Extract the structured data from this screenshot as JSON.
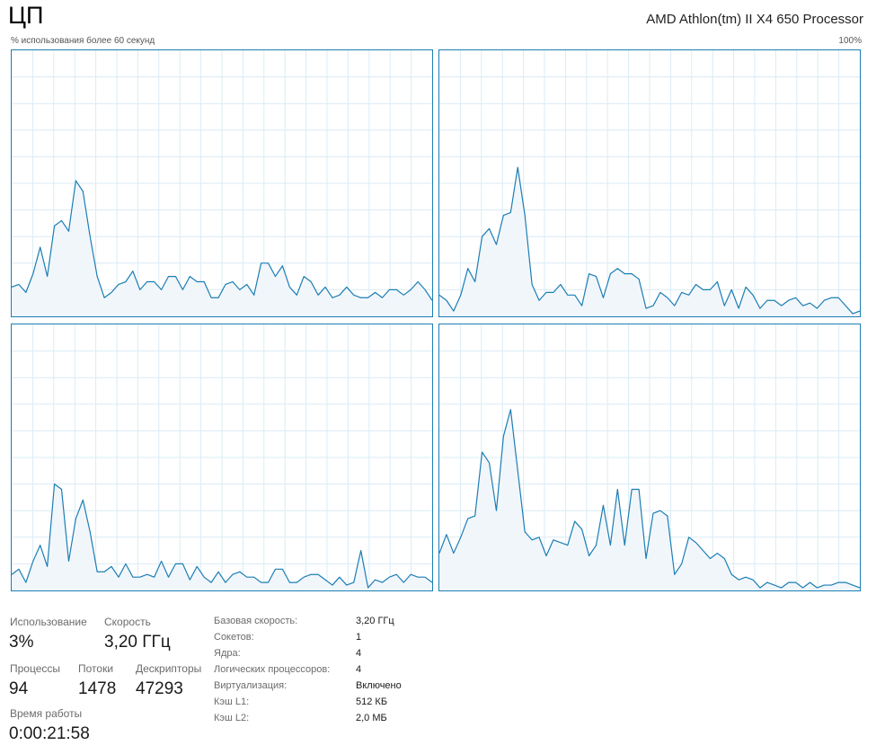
{
  "header": {
    "title": "ЦП",
    "cpu_name": "AMD Athlon(tm) II X4 650 Processor",
    "axis_label": "% использования более 60 секунд",
    "axis_max": "100%"
  },
  "colors": {
    "line": "#1b7eb4",
    "fill": "#f1f6fb",
    "grid": "#d9ecf5",
    "border": "#1b7eb4"
  },
  "chart_data": {
    "type": "area",
    "ylim": [
      0,
      100
    ],
    "grid": true,
    "x_points": 60,
    "series": [
      {
        "values": [
          11,
          12,
          9,
          16,
          26,
          15,
          34,
          36,
          32,
          51,
          47,
          30,
          15,
          7,
          9,
          12,
          13,
          17,
          10,
          13,
          13,
          10,
          15,
          15,
          10,
          15,
          13,
          13,
          7,
          7,
          12,
          13,
          10,
          12,
          8,
          20,
          20,
          15,
          19,
          11,
          8,
          15,
          13,
          8,
          11,
          7,
          8,
          11,
          8,
          7,
          7,
          9,
          7,
          10,
          10,
          8,
          10,
          13,
          10,
          6
        ]
      },
      {
        "values": [
          8,
          6,
          2,
          8,
          18,
          13,
          30,
          33,
          27,
          38,
          39,
          56,
          38,
          12,
          6,
          9,
          9,
          12,
          8,
          8,
          4,
          16,
          15,
          7,
          16,
          18,
          16,
          16,
          14,
          3,
          4,
          9,
          7,
          4,
          9,
          8,
          12,
          10,
          10,
          13,
          4,
          10,
          3,
          11,
          8,
          3,
          6,
          6,
          4,
          6,
          7,
          4,
          5,
          3,
          6,
          7,
          7,
          4,
          1,
          2
        ]
      },
      {
        "values": [
          6,
          8,
          3,
          11,
          17,
          9,
          40,
          38,
          11,
          27,
          34,
          22,
          7,
          7,
          9,
          5,
          10,
          5,
          5,
          6,
          5,
          11,
          5,
          10,
          10,
          4,
          9,
          5,
          3,
          7,
          3,
          6,
          7,
          5,
          5,
          3,
          3,
          8,
          8,
          3,
          3,
          5,
          6,
          6,
          4,
          2,
          5,
          2,
          3,
          15,
          1,
          4,
          3,
          5,
          6,
          3,
          6,
          5,
          5,
          3
        ]
      },
      {
        "values": [
          14,
          21,
          14,
          20,
          27,
          28,
          52,
          48,
          30,
          58,
          68,
          45,
          22,
          19,
          20,
          13,
          19,
          18,
          17,
          26,
          23,
          13,
          17,
          32,
          17,
          38,
          17,
          38,
          38,
          12,
          29,
          30,
          28,
          6,
          10,
          20,
          18,
          15,
          12,
          14,
          12,
          6,
          4,
          5,
          4,
          1,
          3,
          2,
          1,
          3,
          3,
          1,
          3,
          1,
          2,
          2,
          3,
          3,
          2,
          1
        ]
      }
    ]
  },
  "stats": {
    "usage": {
      "label": "Использование",
      "value": "3%"
    },
    "speed": {
      "label": "Скорость",
      "value": "3,20 ГГц"
    },
    "processes": {
      "label": "Процессы",
      "value": "94"
    },
    "threads": {
      "label": "Потоки",
      "value": "1478"
    },
    "handles": {
      "label": "Дескрипторы",
      "value": "47293"
    },
    "uptime": {
      "label": "Время работы",
      "value": "0:00:21:58"
    }
  },
  "specs": [
    {
      "label": "Базовая скорость:",
      "value": "3,20 ГГц"
    },
    {
      "label": "Сокетов:",
      "value": "1"
    },
    {
      "label": "Ядра:",
      "value": "4"
    },
    {
      "label": "Логических процессоров:",
      "value": "4"
    },
    {
      "label": "Виртуализация:",
      "value": "Включено"
    },
    {
      "label": "Кэш L1:",
      "value": "512 КБ"
    },
    {
      "label": "Кэш L2:",
      "value": "2,0 МБ"
    }
  ]
}
